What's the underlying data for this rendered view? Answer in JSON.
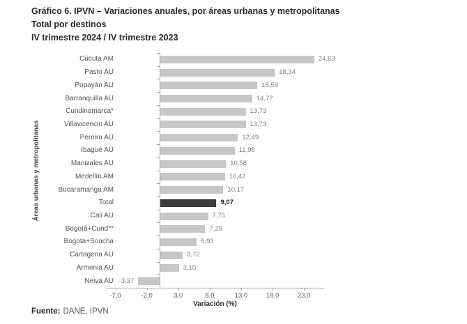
{
  "header": {
    "title_line1": "Gráfico 6. IPVN – Variaciones anuales, por áreas urbanas y metropolitanas",
    "title_line2": "Total por destinos",
    "title_line3": "IV trimestre 2024 / IV trimestre 2023"
  },
  "footer": {
    "source_label": "Fuente:",
    "source_text": "DANE, IPVN"
  },
  "chart_data": {
    "type": "bar",
    "orientation": "horizontal",
    "title": "Gráfico 6. IPVN – Variaciones anuales, por áreas urbanas y metropolitanas",
    "subtitle": "Total por destinos — IV trimestre 2024 / IV trimestre 2023",
    "xlabel": "Variación (%)",
    "ylabel": "Áreas urbanas y metropolitanas",
    "categories": [
      "Cúcuta AM",
      "Pasto AU",
      "Popayán AU",
      "Barranquilla AU",
      "Cundinamarca*",
      "Villavicencio AU",
      "Pereira AU",
      "Ibagué AU",
      "Manizales AU",
      "Medellín AM",
      "Bucaramanga AM",
      "Total",
      "Cali AU",
      "Bogotá+Cund**",
      "Bogotá+Soacha",
      "Cartagena AU",
      "Armenia AU",
      "Neiva AU"
    ],
    "values": [
      24.63,
      18.34,
      15.59,
      14.77,
      13.73,
      13.73,
      12.49,
      11.98,
      10.58,
      10.42,
      10.17,
      9.07,
      7.75,
      7.29,
      5.93,
      3.72,
      3.1,
      -3.37
    ],
    "value_labels": [
      "24,63",
      "18,34",
      "15,59",
      "14,77",
      "13,73",
      "13,73",
      "12,49",
      "11,98",
      "10,58",
      "10,42",
      "10,17",
      "9,07",
      "7,75",
      "7,29",
      "5,93",
      "3,72",
      "3,10",
      "-3,37"
    ],
    "highlight_category": "Total",
    "highlight_index": 11,
    "xlim": [
      -8.5,
      26.2
    ],
    "x_ticks": [
      -7,
      -2,
      3,
      8,
      13,
      18,
      23
    ],
    "x_tick_labels": [
      "-7,0",
      "-2,0",
      "3,0",
      "8,0",
      "13,0",
      "18,0",
      "23,0"
    ],
    "grid": false,
    "legend": null,
    "colors": {
      "bar": "#c7c7c7",
      "highlight_bar": "#3b3b3b",
      "axis_line": "#a6a6a6",
      "value_label": "#7f7f7f",
      "highlight_value_label": "#1a1a1a",
      "category_label": "#545454",
      "title": "#29292f"
    }
  }
}
